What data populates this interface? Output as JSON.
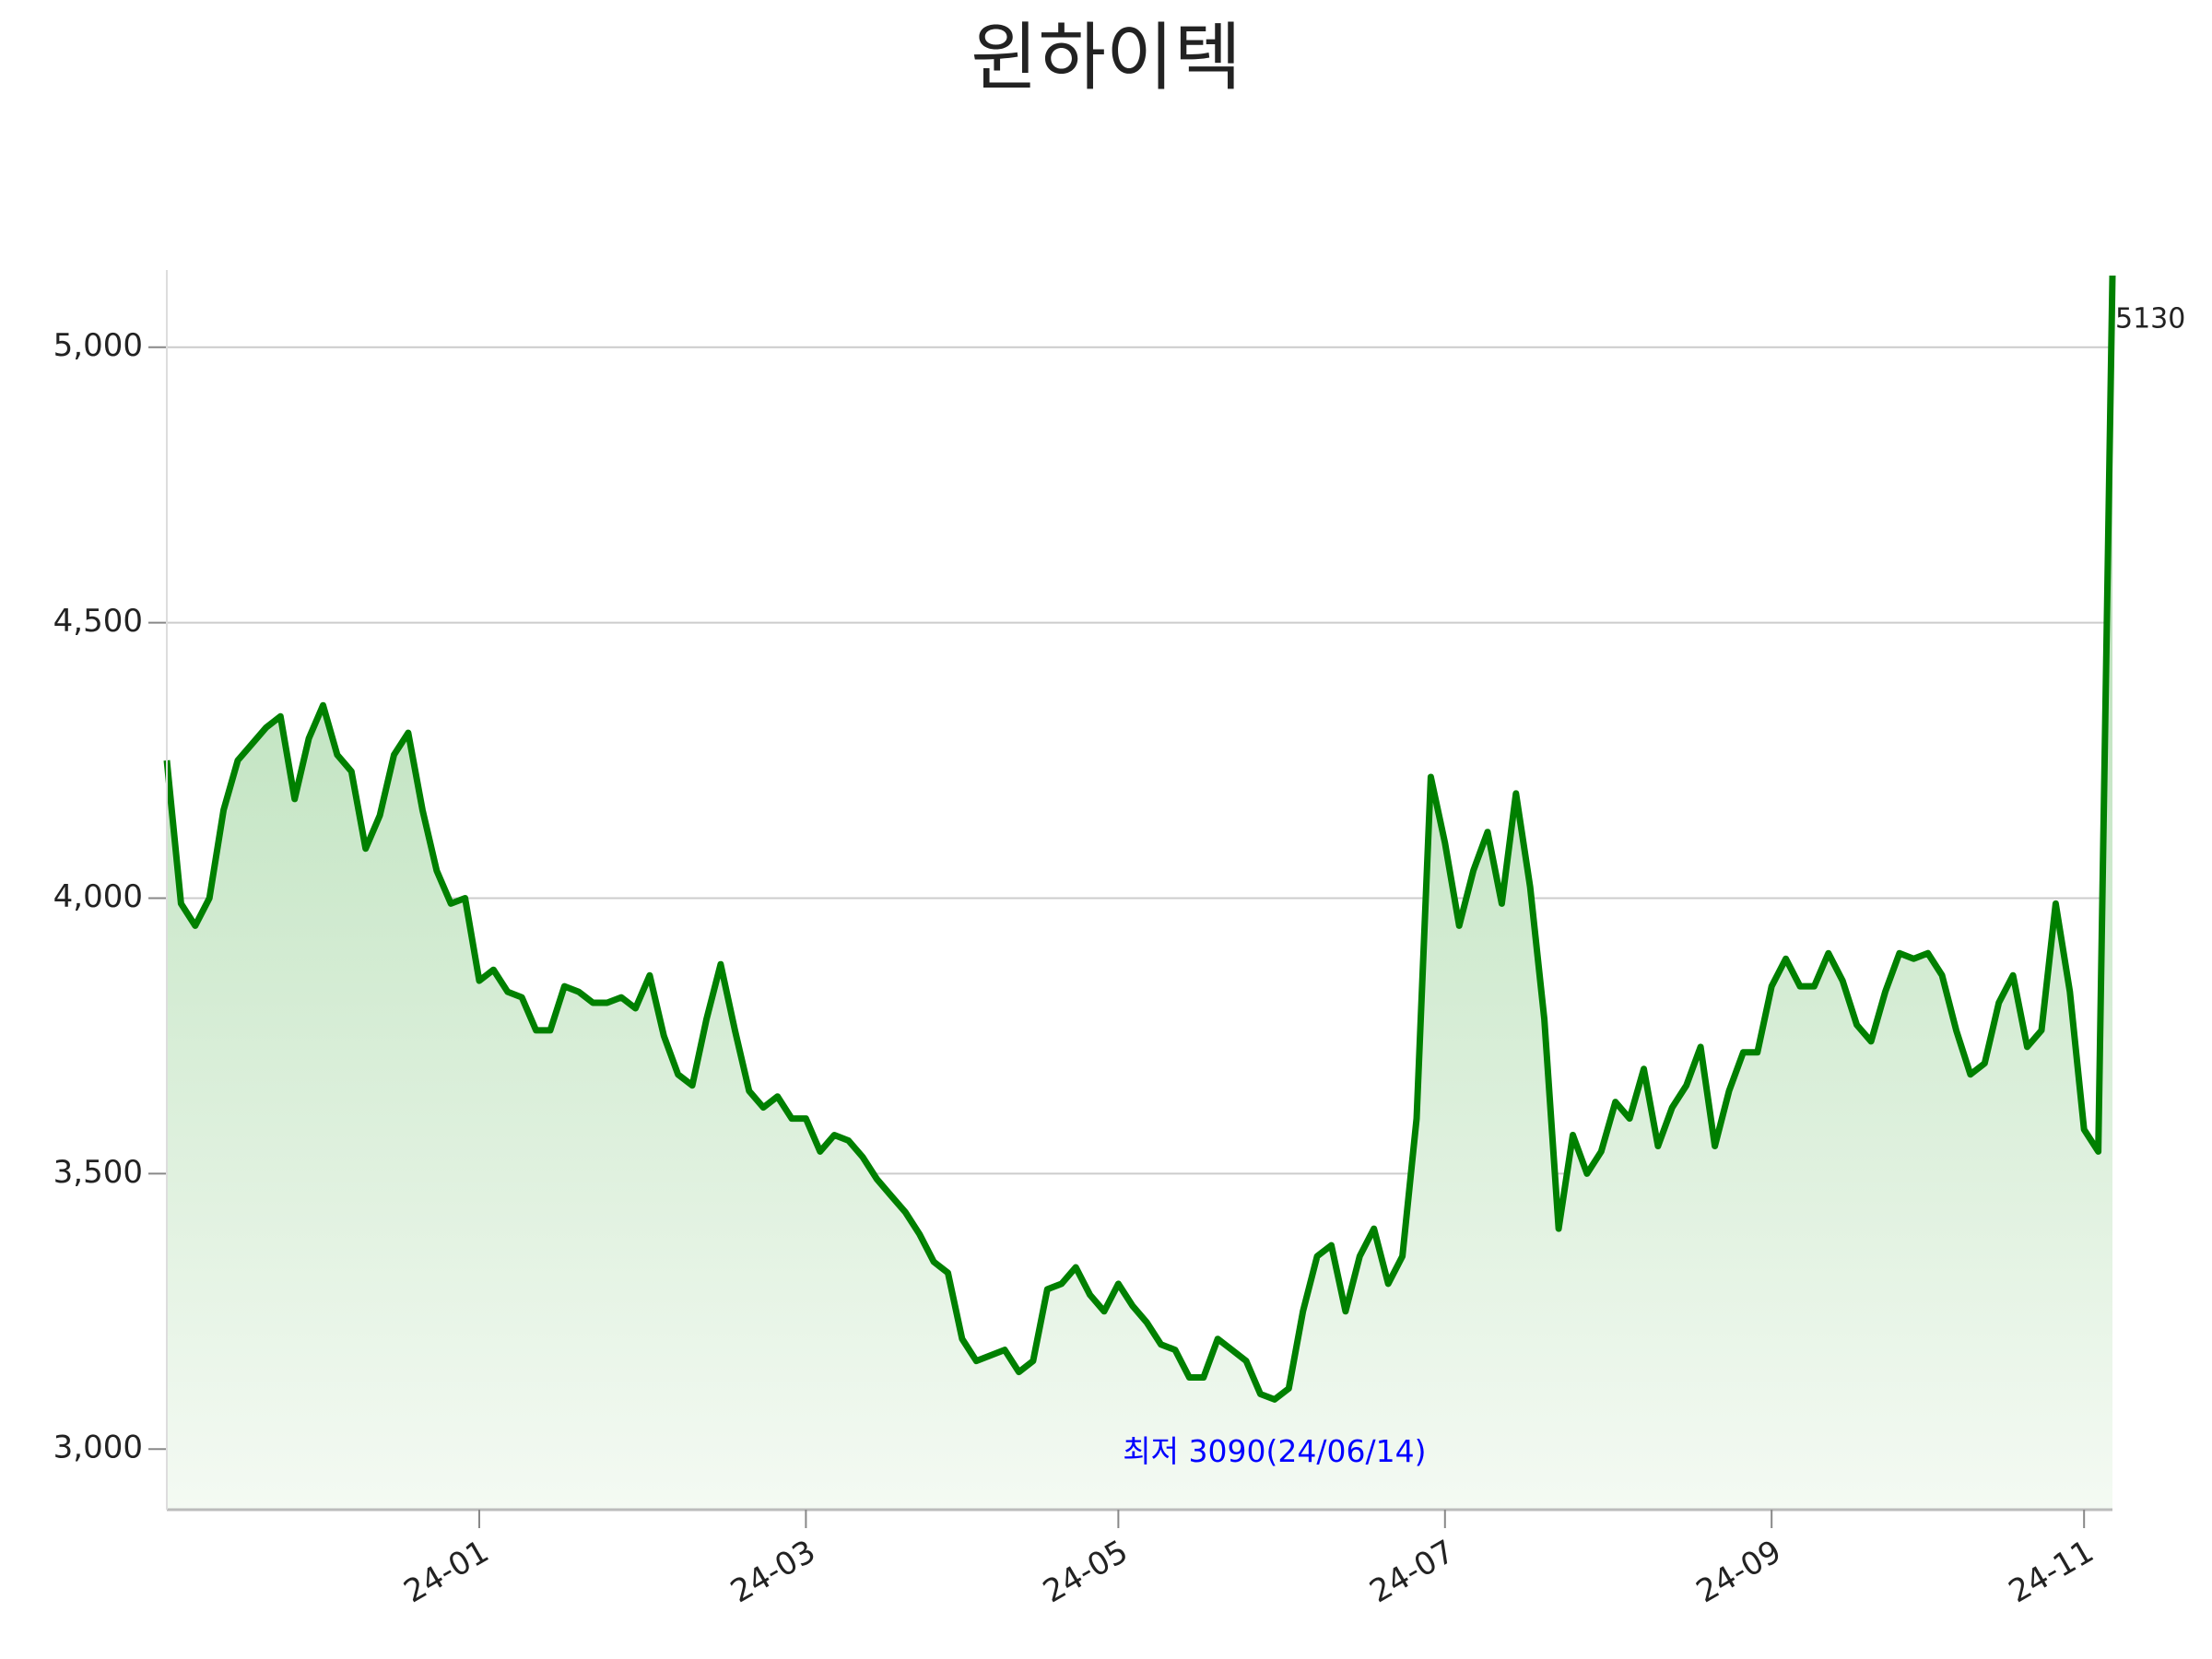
{
  "chart_data": {
    "type": "line",
    "title": "윈하이텍",
    "categories": [
      null,
      null,
      null,
      null,
      null,
      null,
      null,
      null,
      null,
      null,
      null,
      null,
      null,
      null,
      null,
      null,
      null,
      null,
      null,
      null,
      null,
      null,
      "24-01",
      null,
      null,
      null,
      null,
      null,
      null,
      null,
      null,
      null,
      null,
      null,
      null,
      null,
      null,
      null,
      null,
      null,
      null,
      null,
      null,
      null,
      null,
      "24-03",
      null,
      null,
      null,
      null,
      null,
      null,
      null,
      null,
      null,
      null,
      null,
      null,
      null,
      null,
      null,
      null,
      null,
      null,
      null,
      null,
      null,
      "24-05",
      null,
      null,
      null,
      null,
      null,
      null,
      null,
      null,
      null,
      null,
      null,
      null,
      null,
      null,
      null,
      null,
      null,
      null,
      null,
      null,
      null,
      null,
      "24-07",
      null,
      null,
      null,
      null,
      null,
      null,
      null,
      null,
      null,
      null,
      null,
      null,
      null,
      null,
      null,
      null,
      null,
      null,
      null,
      null,
      null,
      null,
      "24-09",
      null,
      null,
      null,
      null,
      null,
      null,
      null,
      null,
      null,
      null,
      null,
      null,
      null,
      null,
      null,
      null,
      null,
      null,
      null,
      null,
      null,
      "24-11",
      null,
      null
    ],
    "values": [
      4250,
      3990,
      3950,
      4000,
      4160,
      4250,
      4280,
      4310,
      4330,
      4180,
      4290,
      4350,
      4260,
      4230,
      4090,
      4150,
      4260,
      4300,
      4160,
      4050,
      3990,
      4000,
      3850,
      3870,
      3830,
      3820,
      3760,
      3760,
      3840,
      3830,
      3810,
      3810,
      3820,
      3800,
      3860,
      3750,
      3680,
      3660,
      3780,
      3880,
      3760,
      3650,
      3620,
      3640,
      3600,
      3600,
      3540,
      3570,
      3560,
      3530,
      3490,
      3460,
      3430,
      3390,
      3340,
      3320,
      3200,
      3160,
      3170,
      3180,
      3140,
      3160,
      3290,
      3300,
      3330,
      3280,
      3250,
      3300,
      3260,
      3230,
      3190,
      3180,
      3130,
      3130,
      3200,
      3180,
      3160,
      3100,
      3090,
      3110,
      3250,
      3350,
      3370,
      3250,
      3350,
      3400,
      3300,
      3350,
      3600,
      4220,
      4100,
      3950,
      4050,
      4120,
      3990,
      4190,
      4020,
      3780,
      3400,
      3570,
      3500,
      3540,
      3630,
      3600,
      3690,
      3550,
      3620,
      3660,
      3730,
      3550,
      3650,
      3720,
      3720,
      3840,
      3890,
      3840,
      3840,
      3900,
      3850,
      3770,
      3740,
      3830,
      3900,
      3890,
      3900,
      3860,
      3760,
      3680,
      3700,
      3810,
      3860,
      3730,
      3760,
      3990,
      3830,
      3580,
      3540,
      5130
    ],
    "color": "#008000",
    "ylim": [
      2890,
      5140
    ],
    "yticks": [
      {
        "value": 3000,
        "label": "3,000"
      },
      {
        "value": 3500,
        "label": "3,500"
      },
      {
        "value": 4000,
        "label": "4,000"
      },
      {
        "value": 4500,
        "label": "4,500"
      },
      {
        "value": 5000,
        "label": "5,000"
      }
    ],
    "grid": true,
    "min_label": "최저 3090(24/06/14)",
    "last_label": "5130"
  }
}
